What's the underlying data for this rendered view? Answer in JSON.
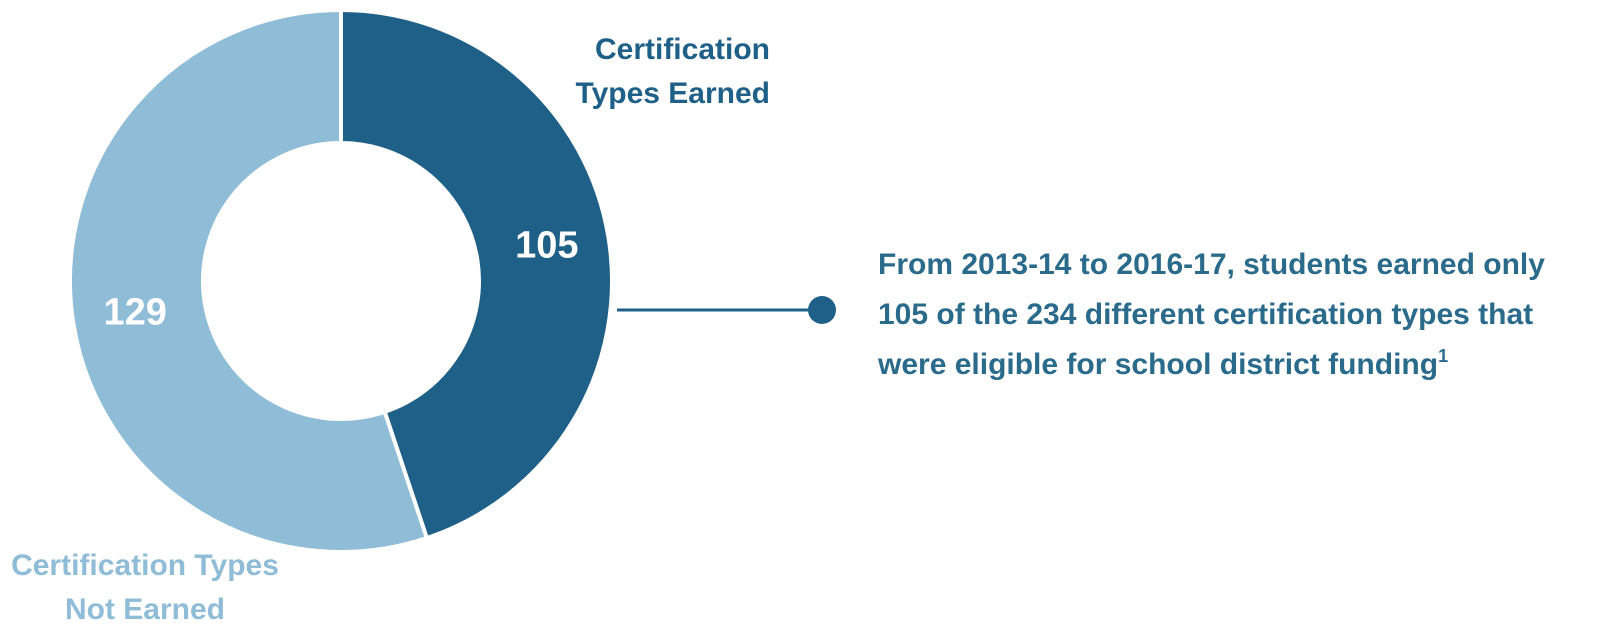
{
  "chart_data": {
    "type": "pie",
    "donut": true,
    "categories": [
      "Certification Types Earned",
      "Certification Types Not Earned"
    ],
    "values": [
      105,
      129
    ],
    "colors": [
      "#1f6088",
      "#8fbcd6"
    ],
    "annotation": "From 2013-14 to 2016-17, students earned only 105 of the 234 different certification types that were eligible for school district funding",
    "annotation_footnote": "1"
  }
}
